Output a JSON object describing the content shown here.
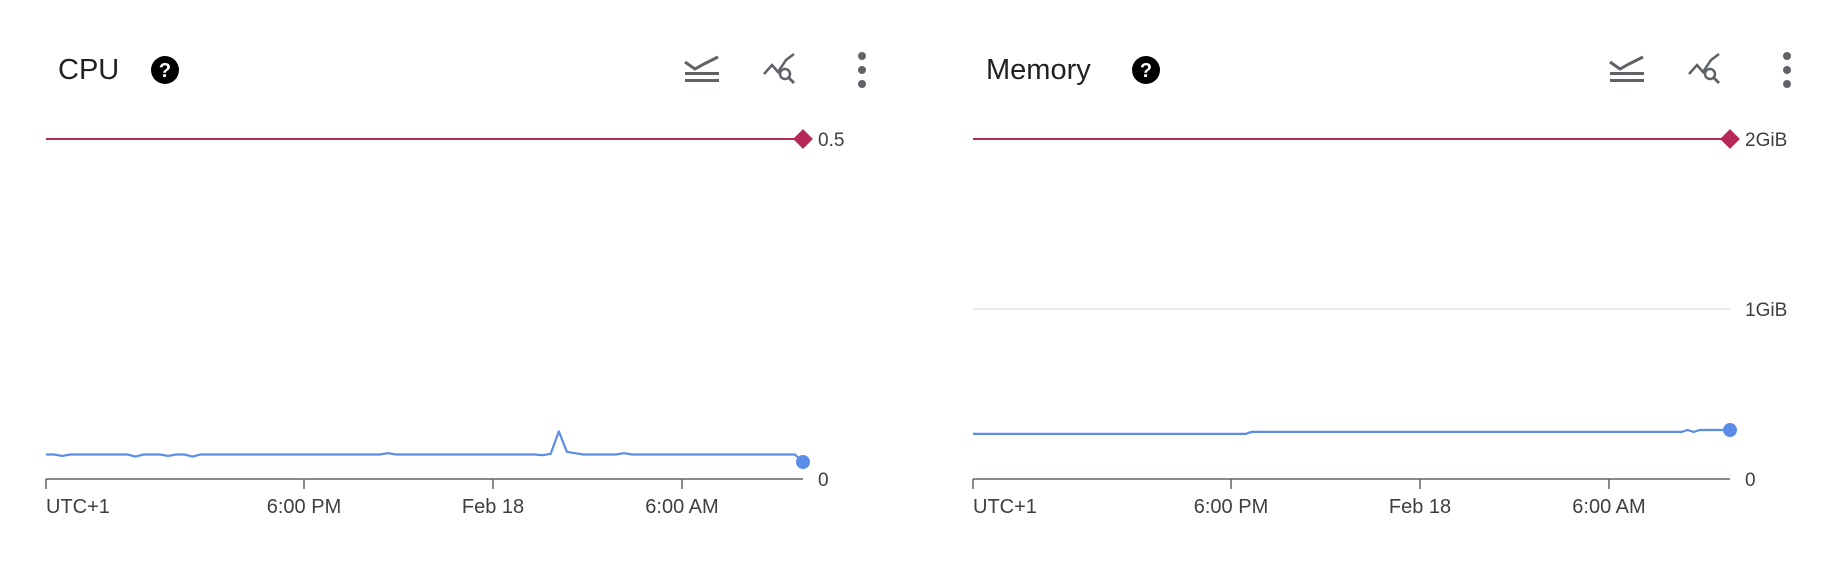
{
  "colors": {
    "series": "#5b8ce6",
    "threshold": "#b7285a",
    "axis": "#5f6368",
    "grid": "#e8eaed"
  },
  "header_icons": [
    "stacked-lines-icon",
    "explore-chart-icon",
    "more-vert-icon"
  ],
  "chart_data": [
    {
      "type": "line",
      "title": "CPU",
      "x_ticks": [
        "UTC+1",
        "6:00 PM",
        "Feb 18",
        "6:00 AM"
      ],
      "y_ticks": [
        "0.5",
        "0"
      ],
      "ylim": [
        0,
        0.5
      ],
      "grid": false,
      "threshold": {
        "value": 0.5,
        "label": "0.5"
      },
      "series": [
        {
          "values": [
            0.036,
            0.036,
            0.034,
            0.036,
            0.036,
            0.036,
            0.036,
            0.036,
            0.036,
            0.036,
            0.036,
            0.033,
            0.036,
            0.036,
            0.036,
            0.034,
            0.036,
            0.036,
            0.033,
            0.036,
            0.036,
            0.036,
            0.036,
            0.036,
            0.036,
            0.036,
            0.036,
            0.036,
            0.036,
            0.036,
            0.036,
            0.036,
            0.036,
            0.036,
            0.036,
            0.036,
            0.036,
            0.036,
            0.036,
            0.036,
            0.036,
            0.036,
            0.038,
            0.036,
            0.036,
            0.036,
            0.036,
            0.036,
            0.036,
            0.036,
            0.036,
            0.036,
            0.036,
            0.036,
            0.036,
            0.036,
            0.036,
            0.036,
            0.036,
            0.036,
            0.036,
            0.035,
            0.037,
            0.07,
            0.04,
            0.038,
            0.036,
            0.036,
            0.036,
            0.036,
            0.036,
            0.038,
            0.036,
            0.036,
            0.036,
            0.036,
            0.036,
            0.036,
            0.036,
            0.036,
            0.036,
            0.036,
            0.036,
            0.036,
            0.036,
            0.036,
            0.036,
            0.036,
            0.036,
            0.036,
            0.036,
            0.036,
            0.036,
            0.025
          ]
        }
      ]
    },
    {
      "type": "line",
      "title": "Memory",
      "x_ticks": [
        "UTC+1",
        "6:00 PM",
        "Feb 18",
        "6:00 AM"
      ],
      "y_ticks": [
        "2GiB",
        "1GiB",
        "0"
      ],
      "ylim": [
        0,
        2
      ],
      "grid": true,
      "threshold": {
        "value": 2,
        "label": "2GiB"
      },
      "series": [
        {
          "values": [
            0.265,
            0.265,
            0.265,
            0.265,
            0.265,
            0.265,
            0.265,
            0.265,
            0.265,
            0.265,
            0.265,
            0.265,
            0.265,
            0.265,
            0.265,
            0.265,
            0.265,
            0.265,
            0.265,
            0.265,
            0.265,
            0.265,
            0.265,
            0.265,
            0.265,
            0.265,
            0.265,
            0.265,
            0.265,
            0.265,
            0.265,
            0.265,
            0.265,
            0.265,
            0.265,
            0.265,
            0.265,
            0.265,
            0.265,
            0.265,
            0.265,
            0.265,
            0.265,
            0.265,
            0.265,
            0.265,
            0.277,
            0.277,
            0.277,
            0.277,
            0.277,
            0.277,
            0.277,
            0.277,
            0.277,
            0.277,
            0.277,
            0.277,
            0.277,
            0.277,
            0.277,
            0.277,
            0.277,
            0.277,
            0.277,
            0.277,
            0.277,
            0.277,
            0.277,
            0.277,
            0.277,
            0.277,
            0.277,
            0.277,
            0.277,
            0.277,
            0.277,
            0.277,
            0.277,
            0.277,
            0.277,
            0.277,
            0.277,
            0.277,
            0.277,
            0.277,
            0.277,
            0.277,
            0.277,
            0.277,
            0.277,
            0.277,
            0.277,
            0.277,
            0.277,
            0.277,
            0.277,
            0.277,
            0.277,
            0.277,
            0.277,
            0.277,
            0.277,
            0.277,
            0.277,
            0.277,
            0.277,
            0.277,
            0.277,
            0.277,
            0.277,
            0.277,
            0.277,
            0.277,
            0.277,
            0.277,
            0.277,
            0.277,
            0.288,
            0.277,
            0.288,
            0.288,
            0.288,
            0.288,
            0.288,
            0.288
          ]
        }
      ]
    }
  ]
}
